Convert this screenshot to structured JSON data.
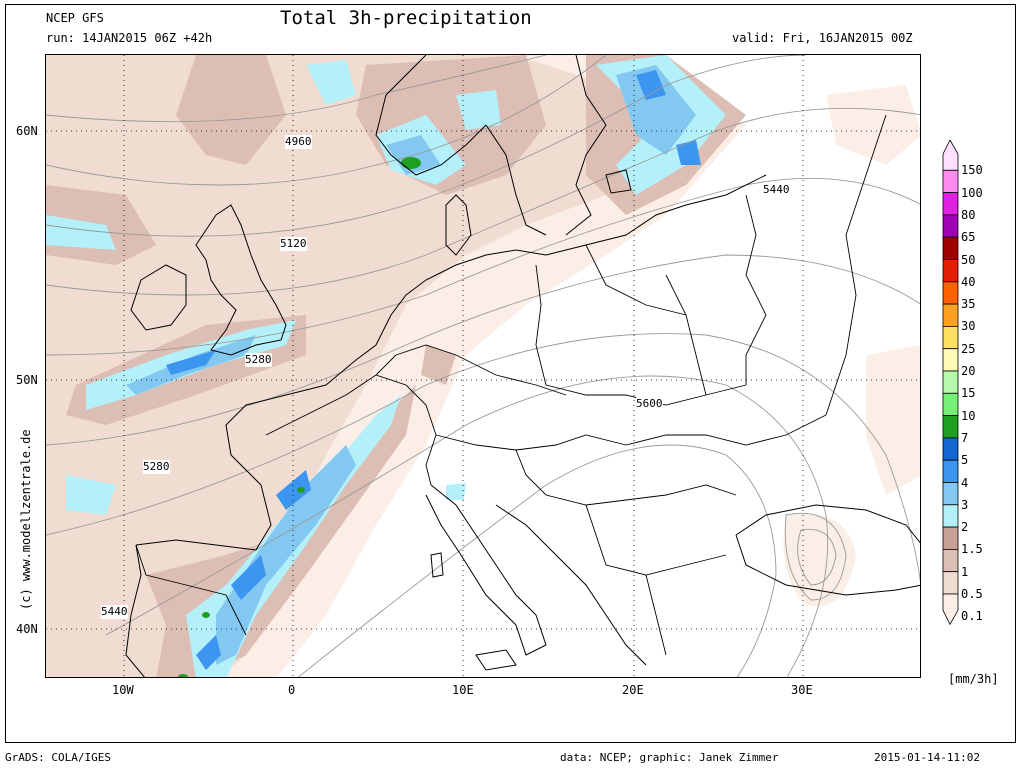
{
  "header": {
    "model": "NCEP GFS",
    "run": "run: 14JAN2015 06Z +42h",
    "title": "Total 3h-precipitation",
    "valid": "valid: Fri, 16JAN2015 00Z"
  },
  "axes": {
    "latitudes": [
      "60N",
      "50N",
      "40N"
    ],
    "longitudes": [
      "10W",
      "0",
      "10E",
      "20E",
      "30E"
    ]
  },
  "contour_labels": [
    "4960",
    "5120",
    "5280",
    "5280",
    "5440",
    "5440",
    "5600"
  ],
  "credit": "(c) www.modellzentrale.de",
  "legend": {
    "units": "[mm/3h]",
    "items": [
      {
        "label": "150",
        "color": "#ffe0ff"
      },
      {
        "label": "100",
        "color": "#ff8cf0"
      },
      {
        "label": "80",
        "color": "#e020e0"
      },
      {
        "label": "65",
        "color": "#a000b4"
      },
      {
        "label": "50",
        "color": "#a00000"
      },
      {
        "label": "40",
        "color": "#e02000"
      },
      {
        "label": "35",
        "color": "#ff6000"
      },
      {
        "label": "30",
        "color": "#ffa020"
      },
      {
        "label": "25",
        "color": "#ffe060"
      },
      {
        "label": "20",
        "color": "#fffab4"
      },
      {
        "label": "15",
        "color": "#b4faaa"
      },
      {
        "label": "10",
        "color": "#78f078"
      },
      {
        "label": "7",
        "color": "#1ea01e"
      },
      {
        "label": "5",
        "color": "#1464d2"
      },
      {
        "label": "4",
        "color": "#3c96f0"
      },
      {
        "label": "3",
        "color": "#82c8f0"
      },
      {
        "label": "2",
        "color": "#b4f0fa"
      },
      {
        "label": "1.5",
        "color": "#c8a096"
      },
      {
        "label": "1",
        "color": "#dcbeb4"
      },
      {
        "label": "0.5",
        "color": "#f0dcd0"
      },
      {
        "label": "0.1",
        "color": "#fbeee6"
      }
    ]
  },
  "footer": {
    "grads": "GrADS: COLA/IGES",
    "data": "data: NCEP; graphic: Janek Zimmer",
    "timestamp": "2015-01-14-11:02"
  }
}
